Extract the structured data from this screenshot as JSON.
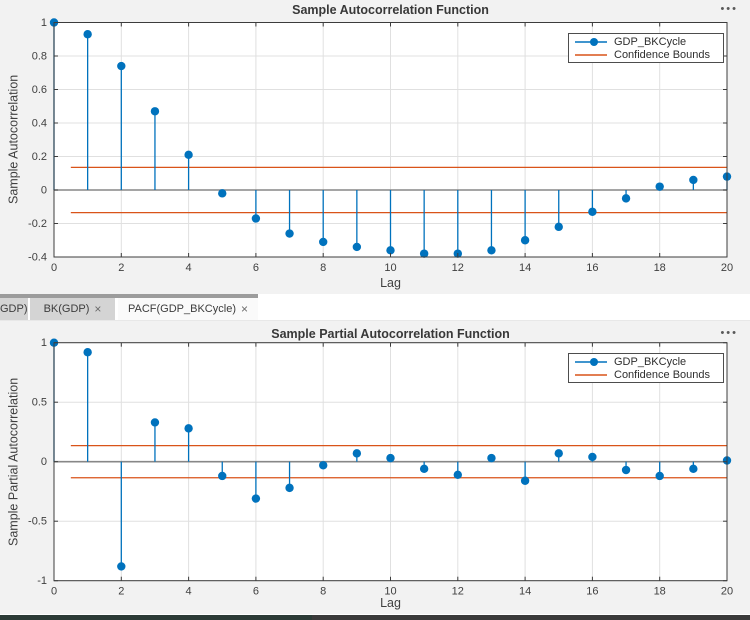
{
  "colors": {
    "series_blue": "#0072BD",
    "bounds_orange": "#D95319",
    "figure_bg": "#F2F2F2",
    "plot_bg": "#FFFFFF",
    "grid": "#E0E0E0",
    "axis_box": "#3C3C3C",
    "zero_line": "#878787",
    "tab_strip": "#9C9C9C",
    "tab_inactive_bg": "#D4D4D4",
    "tab_active_bg": "#FAFAFA",
    "bottom_bar_left": "#2C3B36",
    "bottom_bar_right": "#3A3A3A"
  },
  "figure1": {
    "title": "Sample Autocorrelation Function",
    "ylabel": "Sample Autocorrelation",
    "xlabel": "Lag",
    "menu_icon": "•••",
    "legend": {
      "series": "GDP_BKCycle",
      "bounds": "Confidence Bounds"
    }
  },
  "figure2": {
    "title": "Sample Partial Autocorrelation Function",
    "ylabel": "Sample Partial Autocorrelation",
    "xlabel": "Lag",
    "menu_icon": "•••",
    "legend": {
      "series": "GDP_BKCycle",
      "bounds": "Confidence Bounds"
    }
  },
  "tab_bar": {
    "close_icon": "×",
    "tabs": [
      {
        "label": "GDP)",
        "active": false
      },
      {
        "label": "BK(GDP)",
        "active": false
      },
      {
        "label": "PACF(GDP_BKCycle)",
        "active": true
      }
    ]
  },
  "chart_data": [
    {
      "type": "stem",
      "title": "Sample Autocorrelation Function",
      "xlabel": "Lag",
      "ylabel": "Sample Autocorrelation",
      "series_name": "GDP_BKCycle",
      "x": [
        0,
        1,
        2,
        3,
        4,
        5,
        6,
        7,
        8,
        9,
        10,
        11,
        12,
        13,
        14,
        15,
        16,
        17,
        18,
        19,
        20
      ],
      "values": [
        1.0,
        0.93,
        0.74,
        0.47,
        0.21,
        -0.02,
        -0.17,
        -0.26,
        -0.31,
        -0.34,
        -0.36,
        -0.38,
        -0.38,
        -0.36,
        -0.3,
        -0.22,
        -0.13,
        -0.05,
        0.02,
        0.06,
        0.08
      ],
      "confidence_bounds": {
        "upper": 0.135,
        "lower": -0.135,
        "x_start": 0.5,
        "x_end": 20
      },
      "xlim": [
        0,
        20
      ],
      "ylim": [
        -0.4,
        1
      ],
      "xticks": [
        0,
        2,
        4,
        6,
        8,
        10,
        12,
        14,
        16,
        18,
        20
      ],
      "yticks": [
        -0.4,
        -0.2,
        0,
        0.2,
        0.4,
        0.6,
        0.8,
        1
      ],
      "ytick_labels": [
        "-0.4",
        "-0.2",
        "0",
        "0.2",
        "0.4",
        "0.6",
        "0.8",
        "1"
      ],
      "grid": true,
      "legend": [
        "GDP_BKCycle",
        "Confidence Bounds"
      ],
      "legend_position": "northeast"
    },
    {
      "type": "stem",
      "title": "Sample Partial Autocorrelation Function",
      "xlabel": "Lag",
      "ylabel": "Sample Partial Autocorrelation",
      "series_name": "GDP_BKCycle",
      "x": [
        0,
        1,
        2,
        3,
        4,
        5,
        6,
        7,
        8,
        9,
        10,
        11,
        12,
        13,
        14,
        15,
        16,
        17,
        18,
        19,
        20
      ],
      "values": [
        1.0,
        0.92,
        -0.88,
        0.33,
        0.28,
        -0.12,
        -0.31,
        -0.22,
        -0.03,
        0.07,
        0.03,
        -0.06,
        -0.11,
        0.03,
        -0.16,
        0.07,
        0.04,
        -0.07,
        -0.12,
        -0.06,
        0.01
      ],
      "confidence_bounds": {
        "upper": 0.135,
        "lower": -0.135,
        "x_start": 0.5,
        "x_end": 20
      },
      "xlim": [
        0,
        20
      ],
      "ylim": [
        -1,
        1
      ],
      "xticks": [
        0,
        2,
        4,
        6,
        8,
        10,
        12,
        14,
        16,
        18,
        20
      ],
      "yticks": [
        -1,
        -0.5,
        0,
        0.5,
        1
      ],
      "ytick_labels": [
        "-1",
        "-0.5",
        "0",
        "0.5",
        "1"
      ],
      "grid": true,
      "legend": [
        "GDP_BKCycle",
        "Confidence Bounds"
      ],
      "legend_position": "northeast"
    }
  ]
}
